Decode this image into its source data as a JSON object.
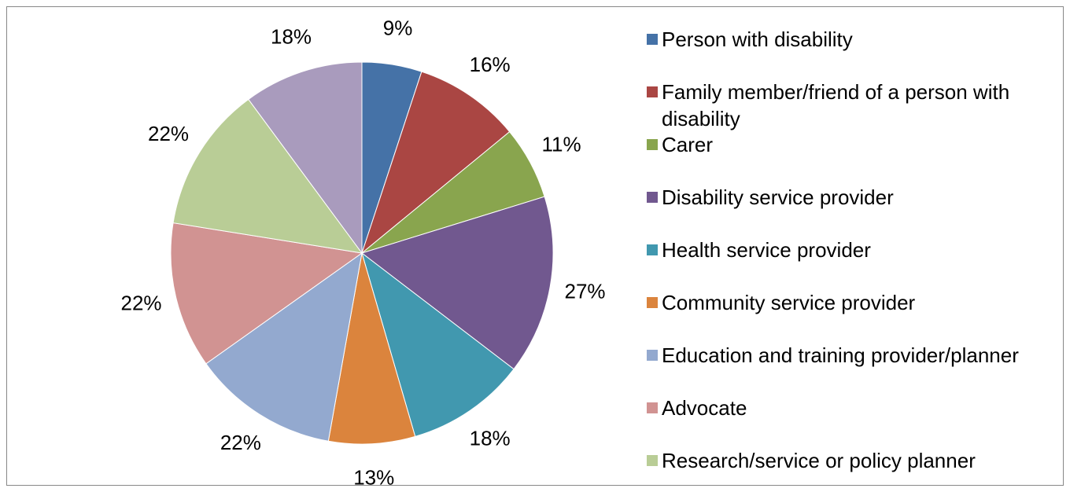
{
  "chart_data": {
    "type": "pie",
    "categories": [
      "Person with disability",
      "Family member/friend of a person with disability",
      "Carer",
      "Disability service provider",
      "Health service provider",
      "Community service provider",
      "Education and training provider/planner",
      "Advocate",
      "Research/service or policy planner",
      null
    ],
    "values": [
      9,
      16,
      11,
      27,
      18,
      13,
      22,
      22,
      22,
      18
    ],
    "value_labels": [
      "9%",
      "16%",
      "11%",
      "27%",
      "18%",
      "13%",
      "22%",
      "22%",
      "22%",
      "18%"
    ],
    "colors": [
      "#4572a7",
      "#aa4643",
      "#89a54e",
      "#71588f",
      "#4198af",
      "#db843d",
      "#93a9cf",
      "#d19392",
      "#b9cd96",
      "#a99bbd"
    ],
    "legend": "right"
  }
}
